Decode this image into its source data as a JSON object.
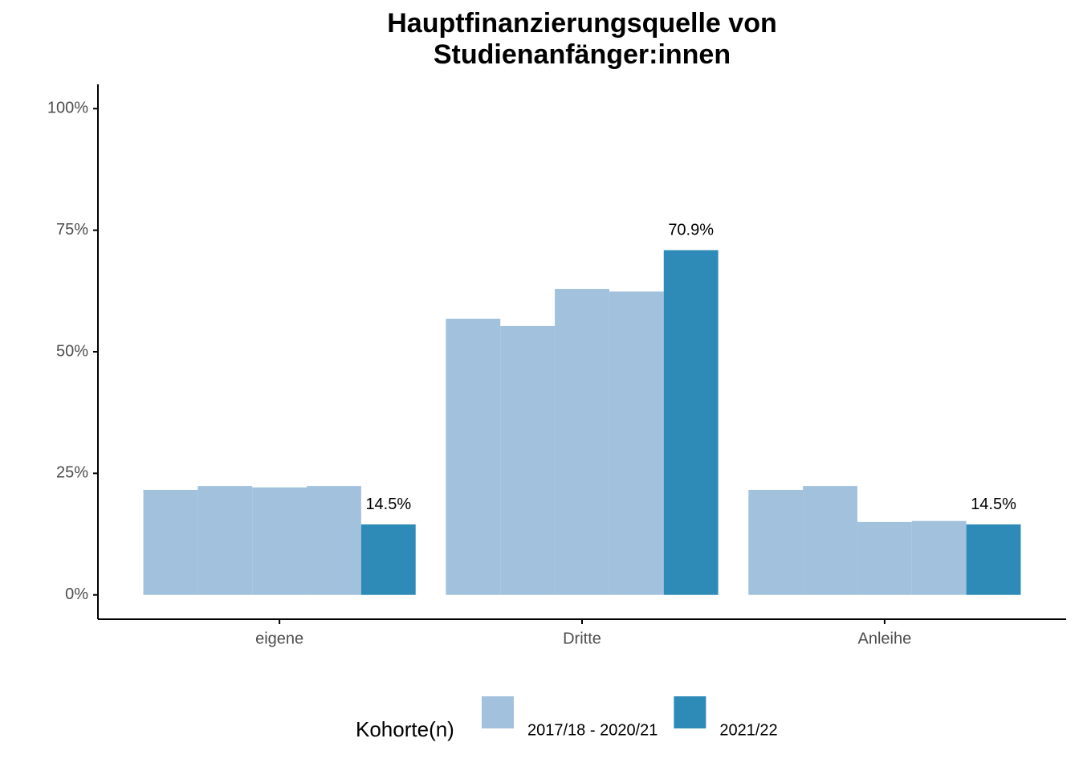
{
  "chart_data": {
    "type": "bar",
    "title": [
      "Hauptfinanzierungsquelle von",
      "Studienanfänger:innen"
    ],
    "categories": [
      "eigene",
      "Dritte",
      "Anleihe"
    ],
    "series": [
      {
        "name": "2017/18 - 2020/21",
        "color": "#a1c1dd",
        "values": [
          [
            21.6,
            22.4,
            22.1,
            22.4
          ],
          [
            56.8,
            55.3,
            62.9,
            62.4
          ],
          [
            21.6,
            22.4,
            15.0,
            15.2
          ]
        ]
      },
      {
        "name": "2021/22",
        "color": "#2e8bb8",
        "values": [
          14.5,
          70.9,
          14.5
        ],
        "value_labels": [
          "14.5%",
          "70.9%",
          "14.5%"
        ]
      }
    ],
    "ylim": [
      -5,
      105
    ],
    "yticks": [
      {
        "value": 0,
        "label": "0%"
      },
      {
        "value": 25,
        "label": "25%"
      },
      {
        "value": 50,
        "label": "50%"
      },
      {
        "value": 75,
        "label": "75%"
      },
      {
        "value": 100,
        "label": "100%"
      }
    ],
    "legend_title": "Kohorte(n)",
    "legend": "bottom"
  }
}
